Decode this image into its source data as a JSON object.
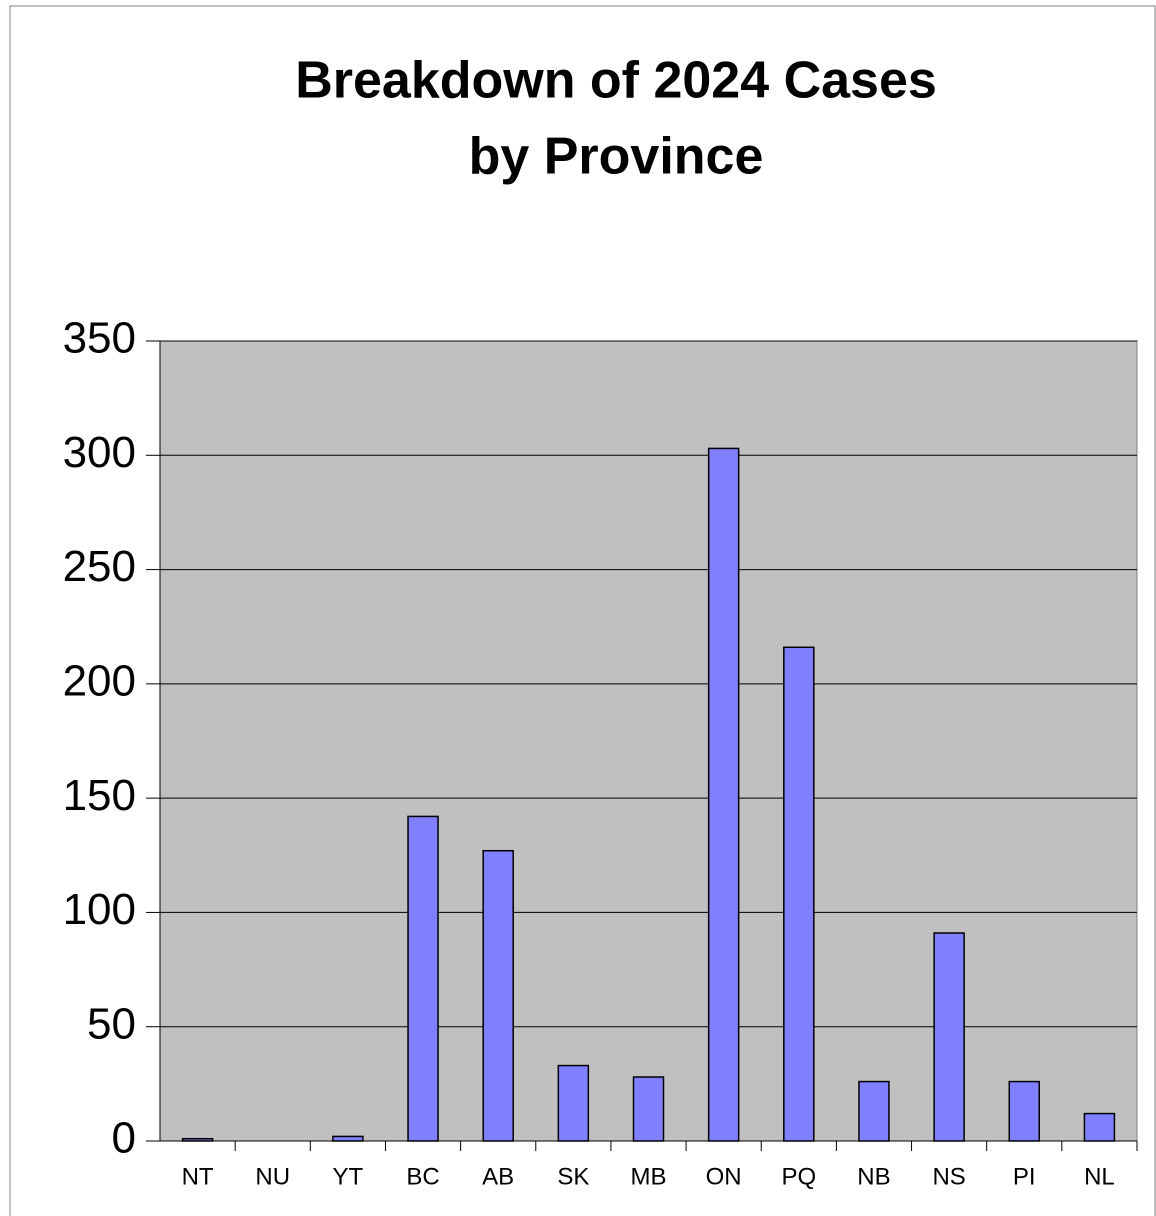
{
  "chart_data": {
    "type": "bar",
    "title": [
      "Breakdown of 2024 Cases",
      "by Province"
    ],
    "categories": [
      "NT",
      "NU",
      "YT",
      "BC",
      "AB",
      "SK",
      "MB",
      "ON",
      "PQ",
      "NB",
      "NS",
      "PI",
      "NL"
    ],
    "values": [
      1,
      0,
      2,
      142,
      127,
      33,
      28,
      303,
      216,
      26,
      91,
      26,
      12
    ],
    "color": "#8080ff",
    "ylim": [
      0,
      350
    ],
    "yticks": [
      0,
      50,
      100,
      150,
      200,
      250,
      300,
      350
    ],
    "grid": true
  }
}
